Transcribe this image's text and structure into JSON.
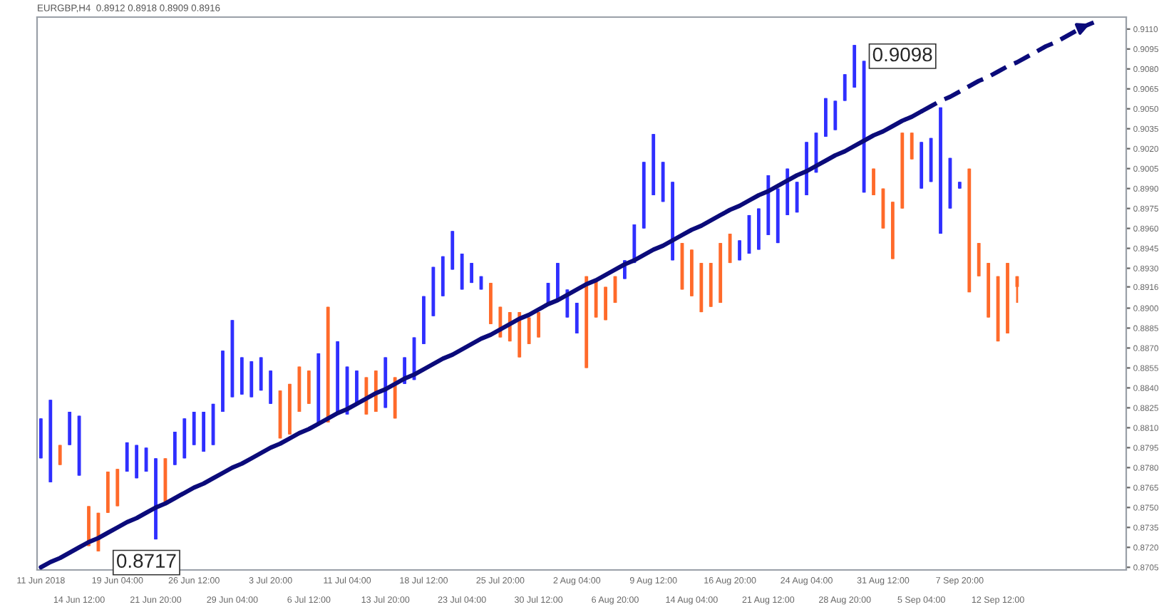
{
  "chart_data": {
    "type": "candlestick",
    "title": "EURGBP,H4  0.8912 0.8918 0.8909 0.8916",
    "ylim": [
      0.8703,
      0.9119
    ],
    "categories": [
      "11 Jun 2018",
      null,
      null,
      null,
      "14 Jun 12:00",
      null,
      null,
      null,
      "19 Jun 04:00",
      null,
      null,
      null,
      "21 Jun 20:00",
      null,
      null,
      null,
      "26 Jun 12:00",
      null,
      null,
      null,
      "29 Jun 04:00",
      null,
      null,
      null,
      "3 Jul 20:00",
      null,
      null,
      null,
      "6 Jul 12:00",
      null,
      null,
      null,
      "11 Jul 04:00",
      null,
      null,
      null,
      "13 Jul 20:00",
      null,
      null,
      null,
      "18 Jul 12:00",
      null,
      null,
      null,
      "23 Jul 04:00",
      null,
      null,
      null,
      "25 Jul 20:00",
      null,
      null,
      null,
      "30 Jul 12:00",
      null,
      null,
      null,
      "2 Aug 04:00",
      null,
      null,
      null,
      "6 Aug 20:00",
      null,
      null,
      null,
      "9 Aug 12:00",
      null,
      null,
      null,
      "14 Aug 04:00",
      null,
      null,
      null,
      "16 Aug 20:00",
      null,
      null,
      null,
      "21 Aug 12:00",
      null,
      null,
      null,
      "24 Aug 04:00",
      null,
      null,
      null,
      "28 Aug 20:00",
      null,
      null,
      null,
      "31 Aug 12:00",
      null,
      null,
      null,
      "5 Sep 04:00",
      null,
      null,
      null,
      "7 Sep 20:00",
      null,
      null,
      null,
      "12 Sep 12:00",
      null,
      null,
      null,
      null,
      null,
      null,
      null,
      null,
      null,
      null,
      null,
      null,
      null
    ],
    "yticks": [
      {
        "value": 0.8705,
        "label": "0.8705"
      },
      {
        "value": 0.872,
        "label": "0.8720"
      },
      {
        "value": 0.8735,
        "label": "0.8735"
      },
      {
        "value": 0.875,
        "label": "0.8750"
      },
      {
        "value": 0.8765,
        "label": "0.8765"
      },
      {
        "value": 0.878,
        "label": "0.8780"
      },
      {
        "value": 0.8795,
        "label": "0.8795"
      },
      {
        "value": 0.881,
        "label": "0.8810"
      },
      {
        "value": 0.8825,
        "label": "0.8825"
      },
      {
        "value": 0.884,
        "label": "0.8840"
      },
      {
        "value": 0.8855,
        "label": "0.8855"
      },
      {
        "value": 0.887,
        "label": "0.8870"
      },
      {
        "value": 0.8885,
        "label": "0.8885"
      },
      {
        "value": 0.89,
        "label": "0.8900"
      },
      {
        "value": 0.8916,
        "label": "0.8916"
      },
      {
        "value": 0.893,
        "label": "0.8930"
      },
      {
        "value": 0.8945,
        "label": "0.8945"
      },
      {
        "value": 0.896,
        "label": "0.8960"
      },
      {
        "value": 0.8975,
        "label": "0.8975"
      },
      {
        "value": 0.899,
        "label": "0.8990"
      },
      {
        "value": 0.9005,
        "label": "0.9005"
      },
      {
        "value": 0.902,
        "label": "0.9020"
      },
      {
        "value": 0.9035,
        "label": "0.9035"
      },
      {
        "value": 0.905,
        "label": "0.9050"
      },
      {
        "value": 0.9065,
        "label": "0.9065"
      },
      {
        "value": 0.908,
        "label": "0.9080"
      },
      {
        "value": 0.9095,
        "label": "0.9095"
      },
      {
        "value": 0.911,
        "label": "0.9110"
      }
    ],
    "grid": false,
    "legend": false,
    "annotations": [
      "0.8717",
      "0.9098"
    ],
    "series": [
      {
        "ohlc": [
          [
            0.8787,
            0.8817,
            0.8787,
            0.8817
          ],
          [
            0.8769,
            0.8831,
            0.8769,
            0.8831
          ],
          [
            0.8797,
            0.8797,
            0.8782,
            0.8782
          ],
          [
            0.8797,
            0.8822,
            0.8797,
            0.8822
          ],
          [
            0.8774,
            0.8819,
            0.8774,
            0.8819
          ],
          [
            0.8751,
            0.8751,
            0.8721,
            0.8721
          ],
          [
            0.8746,
            0.8746,
            0.8717,
            0.8717
          ],
          [
            0.8777,
            0.8777,
            0.8746,
            0.8746
          ],
          [
            0.8779,
            0.8779,
            0.8751,
            0.8751
          ],
          [
            0.8777,
            0.8799,
            0.8777,
            0.8799
          ],
          [
            0.8772,
            0.8797,
            0.8772,
            0.8797
          ],
          [
            0.8777,
            0.8795,
            0.8777,
            0.8795
          ],
          [
            0.8726,
            0.8787,
            0.8726,
            0.8787
          ],
          [
            0.8787,
            0.8787,
            0.8753,
            0.8753
          ],
          [
            0.8782,
            0.8807,
            0.8782,
            0.8807
          ],
          [
            0.8787,
            0.8817,
            0.8787,
            0.8817
          ],
          [
            0.8797,
            0.8822,
            0.8797,
            0.8822
          ],
          [
            0.8792,
            0.8822,
            0.8792,
            0.8822
          ],
          [
            0.8797,
            0.8828,
            0.8797,
            0.8828
          ],
          [
            0.8822,
            0.8868,
            0.8822,
            0.8868
          ],
          [
            0.8833,
            0.8891,
            0.8833,
            0.8891
          ],
          [
            0.8835,
            0.8863,
            0.8835,
            0.8863
          ],
          [
            0.8833,
            0.886,
            0.8833,
            0.886
          ],
          [
            0.8838,
            0.8863,
            0.8838,
            0.8863
          ],
          [
            0.8828,
            0.8853,
            0.8828,
            0.8853
          ],
          [
            0.8838,
            0.8838,
            0.8802,
            0.8802
          ],
          [
            0.8843,
            0.8843,
            0.8805,
            0.8805
          ],
          [
            0.8856,
            0.8856,
            0.8822,
            0.8822
          ],
          [
            0.8853,
            0.8853,
            0.8828,
            0.8828
          ],
          [
            0.8814,
            0.8866,
            0.8814,
            0.8866
          ],
          [
            0.8901,
            0.8901,
            0.8814,
            0.8814
          ],
          [
            0.8822,
            0.8875,
            0.8822,
            0.8875
          ],
          [
            0.882,
            0.8856,
            0.882,
            0.8856
          ],
          [
            0.8828,
            0.8853,
            0.8828,
            0.8853
          ],
          [
            0.8848,
            0.8848,
            0.882,
            0.882
          ],
          [
            0.8853,
            0.8853,
            0.8822,
            0.8822
          ],
          [
            0.8825,
            0.8863,
            0.8825,
            0.8863
          ],
          [
            0.8848,
            0.8848,
            0.8817,
            0.8817
          ],
          [
            0.8843,
            0.8863,
            0.8843,
            0.8863
          ],
          [
            0.8846,
            0.8878,
            0.8846,
            0.8878
          ],
          [
            0.8873,
            0.8909,
            0.8873,
            0.8909
          ],
          [
            0.8894,
            0.8931,
            0.8894,
            0.8931
          ],
          [
            0.8909,
            0.8939,
            0.8909,
            0.8939
          ],
          [
            0.8929,
            0.8958,
            0.8929,
            0.8958
          ],
          [
            0.8914,
            0.8941,
            0.8914,
            0.8941
          ],
          [
            0.8919,
            0.8934,
            0.8919,
            0.8934
          ],
          [
            0.8914,
            0.8924,
            0.8914,
            0.8924
          ],
          [
            0.8919,
            0.8919,
            0.8888,
            0.8888
          ],
          [
            0.8901,
            0.8901,
            0.8878,
            0.8878
          ],
          [
            0.8897,
            0.8897,
            0.8875,
            0.8875
          ],
          [
            0.8897,
            0.8897,
            0.8863,
            0.8863
          ],
          [
            0.8893,
            0.8893,
            0.8873,
            0.8873
          ],
          [
            0.8897,
            0.8897,
            0.8878,
            0.8878
          ],
          [
            0.8904,
            0.8919,
            0.8904,
            0.8919
          ],
          [
            0.8907,
            0.8934,
            0.8907,
            0.8934
          ],
          [
            0.8893,
            0.8914,
            0.8893,
            0.8914
          ],
          [
            0.8881,
            0.8904,
            0.8881,
            0.8904
          ],
          [
            0.8924,
            0.8924,
            0.8855,
            0.8855
          ],
          [
            0.8922,
            0.8922,
            0.8893,
            0.8893
          ],
          [
            0.8916,
            0.8916,
            0.8891,
            0.8891
          ],
          [
            0.8924,
            0.8924,
            0.8904,
            0.8904
          ],
          [
            0.8922,
            0.8936,
            0.8922,
            0.8936
          ],
          [
            0.8934,
            0.8963,
            0.8934,
            0.8963
          ],
          [
            0.896,
            0.901,
            0.896,
            0.901
          ],
          [
            0.8985,
            0.9031,
            0.8985,
            0.9031
          ],
          [
            0.898,
            0.901,
            0.898,
            0.901
          ],
          [
            0.8936,
            0.8995,
            0.8936,
            0.8995
          ],
          [
            0.8949,
            0.8949,
            0.8914,
            0.8914
          ],
          [
            0.8944,
            0.8944,
            0.8909,
            0.8909
          ],
          [
            0.8934,
            0.8934,
            0.8897,
            0.8897
          ],
          [
            0.8934,
            0.8934,
            0.8901,
            0.8901
          ],
          [
            0.8949,
            0.8949,
            0.8904,
            0.8904
          ],
          [
            0.8956,
            0.8956,
            0.8934,
            0.8934
          ],
          [
            0.8936,
            0.8951,
            0.8936,
            0.8951
          ],
          [
            0.8941,
            0.897,
            0.8941,
            0.897
          ],
          [
            0.8944,
            0.8975,
            0.8944,
            0.8975
          ],
          [
            0.8955,
            0.9,
            0.8955,
            0.9
          ],
          [
            0.8949,
            0.899,
            0.8949,
            0.899
          ],
          [
            0.897,
            0.9005,
            0.897,
            0.9005
          ],
          [
            0.8972,
            0.8995,
            0.8972,
            0.8995
          ],
          [
            0.8985,
            0.9025,
            0.8985,
            0.9025
          ],
          [
            0.9002,
            0.9032,
            0.9002,
            0.9032
          ],
          [
            0.9029,
            0.9058,
            0.9029,
            0.9058
          ],
          [
            0.9034,
            0.9056,
            0.9034,
            0.9056
          ],
          [
            0.9056,
            0.9076,
            0.9056,
            0.9076
          ],
          [
            0.9066,
            0.9098,
            0.9066,
            0.9098
          ],
          [
            0.8987,
            0.9086,
            0.8987,
            0.9086
          ],
          [
            0.9005,
            0.9005,
            0.8985,
            0.8985
          ],
          [
            0.899,
            0.899,
            0.896,
            0.896
          ],
          [
            0.898,
            0.898,
            0.8937,
            0.8937
          ],
          [
            0.9032,
            0.9032,
            0.8975,
            0.8975
          ],
          [
            0.9032,
            0.9032,
            0.9012,
            0.9012
          ],
          [
            0.899,
            0.9025,
            0.899,
            0.9025
          ],
          [
            0.8995,
            0.9028,
            0.8995,
            0.9028
          ],
          [
            0.8956,
            0.9051,
            0.8956,
            0.9051
          ],
          [
            0.8975,
            0.9013,
            0.8975,
            0.9013
          ],
          [
            0.899,
            0.8995,
            0.899,
            0.8995
          ],
          [
            0.9005,
            0.9005,
            0.8912,
            0.8912
          ],
          [
            0.8949,
            0.8949,
            0.8924,
            0.8924
          ],
          [
            0.8934,
            0.8934,
            0.8893,
            0.8893
          ],
          [
            0.8924,
            0.8924,
            0.8875,
            0.8875
          ],
          [
            0.8934,
            0.8934,
            0.8881,
            0.8881
          ],
          [
            0.8924,
            0.8924,
            0.8904,
            0.8916
          ],
          null,
          null,
          null,
          null,
          null,
          null,
          null,
          null,
          null,
          null,
          null
        ],
        "colors": [
          "#2f2fff",
          "#2f2fff",
          "#ff6a2a",
          "#2f2fff",
          "#2f2fff",
          "#ff6a2a",
          "#ff6a2a",
          "#ff6a2a",
          "#ff6a2a",
          "#2f2fff",
          "#2f2fff",
          "#2f2fff",
          "#2f2fff",
          "#ff6a2a",
          "#2f2fff",
          "#2f2fff",
          "#2f2fff",
          "#2f2fff",
          "#2f2fff",
          "#2f2fff",
          "#2f2fff",
          "#2f2fff",
          "#2f2fff",
          "#2f2fff",
          "#2f2fff",
          "#ff6a2a",
          "#ff6a2a",
          "#ff6a2a",
          "#ff6a2a",
          "#2f2fff",
          "#ff6a2a",
          "#2f2fff",
          "#2f2fff",
          "#2f2fff",
          "#ff6a2a",
          "#ff6a2a",
          "#2f2fff",
          "#ff6a2a",
          "#2f2fff",
          "#2f2fff",
          "#2f2fff",
          "#2f2fff",
          "#2f2fff",
          "#2f2fff",
          "#2f2fff",
          "#2f2fff",
          "#2f2fff",
          "#ff6a2a",
          "#ff6a2a",
          "#ff6a2a",
          "#ff6a2a",
          "#ff6a2a",
          "#ff6a2a",
          "#2f2fff",
          "#2f2fff",
          "#2f2fff",
          "#2f2fff",
          "#ff6a2a",
          "#ff6a2a",
          "#ff6a2a",
          "#ff6a2a",
          "#2f2fff",
          "#2f2fff",
          "#2f2fff",
          "#2f2fff",
          "#2f2fff",
          "#2f2fff",
          "#ff6a2a",
          "#ff6a2a",
          "#ff6a2a",
          "#ff6a2a",
          "#ff6a2a",
          "#ff6a2a",
          "#2f2fff",
          "#2f2fff",
          "#2f2fff",
          "#2f2fff",
          "#2f2fff",
          "#2f2fff",
          "#2f2fff",
          "#2f2fff",
          "#2f2fff",
          "#2f2fff",
          "#2f2fff",
          "#2f2fff",
          "#2f2fff",
          "#2f2fff",
          "#ff6a2a",
          "#ff6a2a",
          "#ff6a2a",
          "#ff6a2a",
          "#ff6a2a",
          "#2f2fff",
          "#2f2fff",
          "#2f2fff",
          "#2f2fff",
          "#2f2fff",
          "#ff6a2a",
          "#ff6a2a",
          "#ff6a2a",
          "#ff6a2a",
          "#ff6a2a",
          "#ff6a2a",
          null,
          null,
          null,
          null,
          null,
          null,
          null,
          null,
          null,
          null,
          null
        ]
      },
      {
        "type": "line",
        "color": "#0b0b7a",
        "line_style": "solid",
        "values": [
          0.8705,
          0.8709,
          0.8712,
          0.8716,
          0.872,
          0.8724,
          0.8727,
          0.8731,
          0.8735,
          0.8739,
          0.8742,
          0.8746,
          0.875,
          0.8753,
          0.8757,
          0.8761,
          0.8765,
          0.8768,
          0.8772,
          0.8776,
          0.878,
          0.8783,
          0.8787,
          0.8791,
          0.8795,
          0.8798,
          0.8802,
          0.8806,
          0.8809,
          0.8813,
          0.8817,
          0.8821,
          0.8824,
          0.8828,
          0.8832,
          0.8836,
          0.8839,
          0.8843,
          0.8847,
          0.885,
          0.8854,
          0.8858,
          0.8862,
          0.8865,
          0.8869,
          0.8873,
          0.8877,
          0.888,
          0.8884,
          0.8888,
          0.8892,
          0.8895,
          0.8899,
          0.8903,
          0.8906,
          0.891,
          0.8914,
          0.8918,
          0.8921,
          0.8925,
          0.8929,
          0.8933,
          0.8936,
          0.894,
          0.8944,
          0.8947,
          0.8951,
          0.8955,
          0.8959,
          0.8962,
          0.8966,
          0.897,
          0.8974,
          0.8977,
          0.8981,
          0.8985,
          0.8988,
          0.8992,
          0.8996,
          0.9,
          0.9003,
          0.9007,
          0.9011,
          0.9015,
          0.9018,
          0.9022,
          0.9026,
          0.903,
          0.9033,
          0.9037,
          0.9041,
          0.9044,
          0.9048,
          null,
          null,
          null,
          null,
          null,
          null,
          null,
          null,
          null,
          null,
          null,
          null,
          null,
          null,
          null,
          null,
          null,
          null,
          null,
          null,
          null
        ]
      },
      {
        "type": "line",
        "color": "#0b0b7a",
        "line_style": "dashed",
        "values": [
          null,
          null,
          null,
          null,
          null,
          null,
          null,
          null,
          null,
          null,
          null,
          null,
          null,
          null,
          null,
          null,
          null,
          null,
          null,
          null,
          null,
          null,
          null,
          null,
          null,
          null,
          null,
          null,
          null,
          null,
          null,
          null,
          null,
          null,
          null,
          null,
          null,
          null,
          null,
          null,
          null,
          null,
          null,
          null,
          null,
          null,
          null,
          null,
          null,
          null,
          null,
          null,
          null,
          null,
          null,
          null,
          null,
          null,
          null,
          null,
          null,
          null,
          null,
          null,
          null,
          null,
          null,
          null,
          null,
          null,
          null,
          null,
          null,
          null,
          null,
          null,
          null,
          null,
          null,
          null,
          null,
          null,
          null,
          null,
          null,
          null,
          null,
          null,
          null,
          null,
          null,
          null,
          0.9048,
          0.9052,
          0.9056,
          0.9059,
          0.9063,
          0.9067,
          0.9071,
          0.9074,
          0.9078,
          0.9082,
          0.9085,
          0.9089,
          0.9093,
          0.9097,
          0.91,
          0.9104,
          0.9108,
          0.9112,
          0.9115,
          null,
          null,
          null
        ]
      }
    ]
  }
}
